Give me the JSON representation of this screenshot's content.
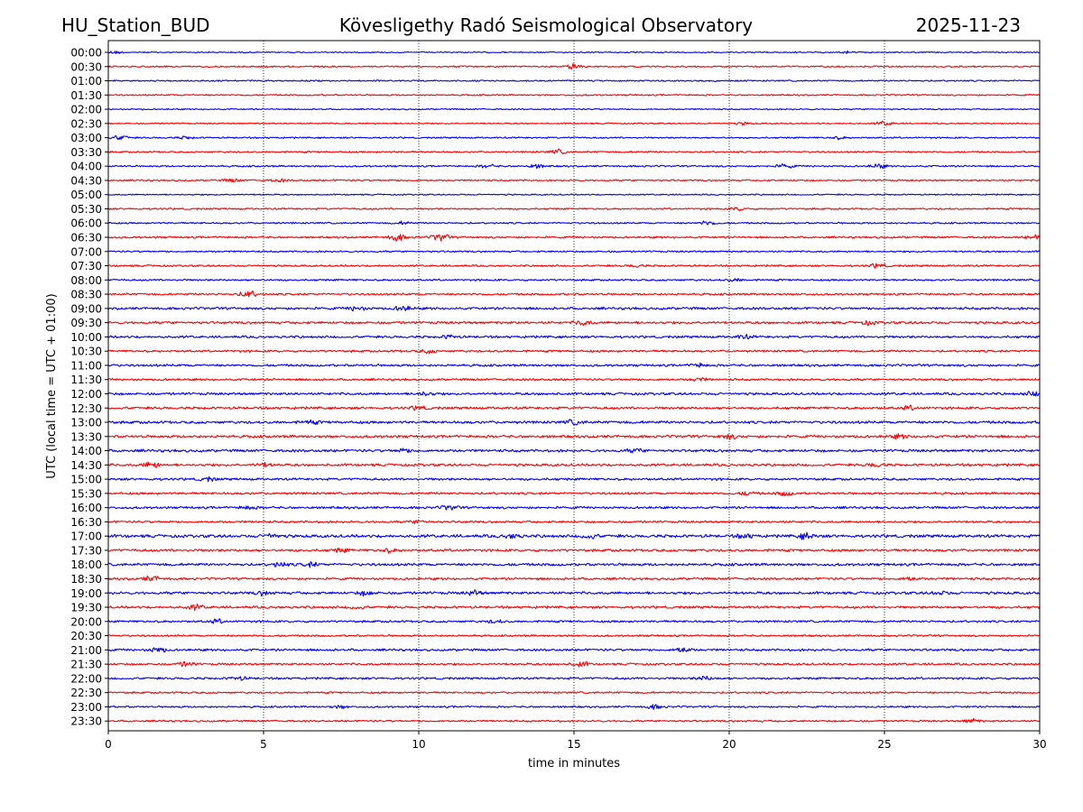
{
  "header": {
    "station": "HU_Station_BUD",
    "observatory": "Kövesligethy Radó Seismological Observatory",
    "date": "2025-11-23"
  },
  "chart_data": {
    "type": "line",
    "title": "Kövesligethy Radó Seismological Observatory",
    "xlabel": "time in minutes",
    "ylabel": "UTC (local time = UTC + 01:00)",
    "xlim": [
      0,
      30
    ],
    "xticks": [
      0,
      5,
      10,
      15,
      20,
      25,
      30
    ],
    "grid": "vertical dotted lines at each x tick",
    "colors": [
      "#0000ff",
      "#ff0000"
    ],
    "rows": [
      {
        "label": "00:00",
        "base": 0.7,
        "events": [
          [
            0.2,
            1.5
          ],
          [
            23.8,
            1.2
          ]
        ]
      },
      {
        "label": "00:30",
        "base": 0.9,
        "events": [
          [
            15.0,
            3.0
          ]
        ]
      },
      {
        "label": "01:00",
        "base": 0.9,
        "events": []
      },
      {
        "label": "01:30",
        "base": 0.9,
        "events": []
      },
      {
        "label": "02:00",
        "base": 0.8,
        "events": []
      },
      {
        "label": "02:30",
        "base": 0.8,
        "events": [
          [
            25.0,
            2.5
          ],
          [
            20.5,
            1.5
          ]
        ]
      },
      {
        "label": "03:00",
        "base": 0.9,
        "events": [
          [
            0.4,
            3.0
          ],
          [
            2.5,
            1.5
          ],
          [
            23.5,
            1.5
          ]
        ]
      },
      {
        "label": "03:30",
        "base": 1.0,
        "events": [
          [
            14.5,
            2.5
          ]
        ]
      },
      {
        "label": "04:00",
        "base": 1.0,
        "events": [
          [
            12.2,
            2.0
          ],
          [
            13.8,
            2.0
          ],
          [
            21.8,
            2.5
          ],
          [
            24.8,
            2.5
          ]
        ]
      },
      {
        "label": "04:30",
        "base": 1.0,
        "events": [
          [
            4.0,
            2.0
          ],
          [
            5.5,
            1.5
          ]
        ]
      },
      {
        "label": "05:00",
        "base": 0.8,
        "events": []
      },
      {
        "label": "05:30",
        "base": 1.0,
        "events": [
          [
            20.3,
            2.0
          ]
        ]
      },
      {
        "label": "06:00",
        "base": 1.0,
        "events": [
          [
            19.3,
            2.5
          ],
          [
            9.5,
            1.5
          ]
        ]
      },
      {
        "label": "06:30",
        "base": 1.2,
        "events": [
          [
            9.3,
            4.0
          ],
          [
            10.7,
            4.5
          ],
          [
            29.8,
            2.0
          ]
        ]
      },
      {
        "label": "07:00",
        "base": 1.0,
        "events": []
      },
      {
        "label": "07:30",
        "base": 1.1,
        "events": [
          [
            24.8,
            2.5
          ],
          [
            17.0,
            1.5
          ]
        ]
      },
      {
        "label": "08:00",
        "base": 1.1,
        "events": [
          [
            20.2,
            1.5
          ]
        ]
      },
      {
        "label": "08:30",
        "base": 1.2,
        "events": [
          [
            4.5,
            4.5
          ]
        ]
      },
      {
        "label": "09:00",
        "base": 1.5,
        "events": [
          [
            8.0,
            2.5
          ],
          [
            9.5,
            3.0
          ]
        ]
      },
      {
        "label": "09:30",
        "base": 1.5,
        "events": [
          [
            15.3,
            3.0
          ],
          [
            24.5,
            2.0
          ]
        ]
      },
      {
        "label": "10:00",
        "base": 1.4,
        "events": [
          [
            11.0,
            2.0
          ],
          [
            20.5,
            2.0
          ]
        ]
      },
      {
        "label": "10:30",
        "base": 1.3,
        "events": [
          [
            10.3,
            1.8
          ]
        ]
      },
      {
        "label": "11:00",
        "base": 1.4,
        "events": [
          [
            19.0,
            2.0
          ]
        ]
      },
      {
        "label": "11:30",
        "base": 1.3,
        "events": [
          [
            19.0,
            2.0
          ]
        ]
      },
      {
        "label": "12:00",
        "base": 1.5,
        "events": [
          [
            10.2,
            2.5
          ],
          [
            29.8,
            2.5
          ]
        ]
      },
      {
        "label": "12:30",
        "base": 1.5,
        "events": [
          [
            10.0,
            2.0
          ],
          [
            25.8,
            2.0
          ]
        ]
      },
      {
        "label": "13:00",
        "base": 1.6,
        "events": [
          [
            6.5,
            2.0
          ],
          [
            15.0,
            2.5
          ]
        ]
      },
      {
        "label": "13:30",
        "base": 1.6,
        "events": [
          [
            20.0,
            2.5
          ],
          [
            25.5,
            2.0
          ]
        ]
      },
      {
        "label": "14:00",
        "base": 1.6,
        "events": [
          [
            9.5,
            2.0
          ],
          [
            17.0,
            2.0
          ]
        ]
      },
      {
        "label": "14:30",
        "base": 1.5,
        "events": [
          [
            1.4,
            3.5
          ],
          [
            5.0,
            2.0
          ],
          [
            24.7,
            2.0
          ]
        ]
      },
      {
        "label": "15:00",
        "base": 1.4,
        "events": [
          [
            3.2,
            2.0
          ]
        ]
      },
      {
        "label": "15:30",
        "base": 1.4,
        "events": [
          [
            21.8,
            2.5
          ],
          [
            20.6,
            2.0
          ]
        ]
      },
      {
        "label": "16:00",
        "base": 1.4,
        "events": [
          [
            11.0,
            2.5
          ],
          [
            4.5,
            1.8
          ]
        ]
      },
      {
        "label": "16:30",
        "base": 1.3,
        "events": [
          [
            10.0,
            1.8
          ]
        ]
      },
      {
        "label": "17:00",
        "base": 1.8,
        "events": [
          [
            5.2,
            2.5
          ],
          [
            15.5,
            3.0
          ],
          [
            22.5,
            3.5
          ],
          [
            20.5,
            2.5
          ],
          [
            13.0,
            2.5
          ]
        ]
      },
      {
        "label": "17:30",
        "base": 1.5,
        "events": [
          [
            7.5,
            2.0
          ],
          [
            9.0,
            2.0
          ]
        ]
      },
      {
        "label": "18:00",
        "base": 1.6,
        "events": [
          [
            5.5,
            2.5
          ],
          [
            6.5,
            2.5
          ]
        ]
      },
      {
        "label": "18:30",
        "base": 1.4,
        "events": [
          [
            1.4,
            3.0
          ],
          [
            25.8,
            2.0
          ]
        ]
      },
      {
        "label": "19:00",
        "base": 1.6,
        "events": [
          [
            5.0,
            2.0
          ],
          [
            8.3,
            2.5
          ],
          [
            11.8,
            2.5
          ],
          [
            26.8,
            2.0
          ]
        ]
      },
      {
        "label": "19:30",
        "base": 1.5,
        "events": [
          [
            2.8,
            2.5
          ],
          [
            8.0,
            2.0
          ]
        ]
      },
      {
        "label": "20:00",
        "base": 1.3,
        "events": [
          [
            3.5,
            2.0
          ],
          [
            12.5,
            1.8
          ]
        ]
      },
      {
        "label": "20:30",
        "base": 1.1,
        "events": []
      },
      {
        "label": "21:00",
        "base": 1.4,
        "events": [
          [
            1.6,
            3.0
          ],
          [
            18.5,
            3.0
          ]
        ]
      },
      {
        "label": "21:30",
        "base": 1.3,
        "events": [
          [
            2.5,
            2.5
          ],
          [
            15.2,
            3.0
          ]
        ]
      },
      {
        "label": "22:00",
        "base": 1.3,
        "events": [
          [
            4.2,
            2.0
          ],
          [
            19.2,
            2.5
          ]
        ]
      },
      {
        "label": "22:30",
        "base": 1.1,
        "events": []
      },
      {
        "label": "23:00",
        "base": 1.1,
        "events": [
          [
            17.6,
            2.5
          ],
          [
            7.5,
            1.5
          ]
        ]
      },
      {
        "label": "23:30",
        "base": 1.1,
        "events": [
          [
            27.8,
            2.5
          ]
        ]
      }
    ]
  }
}
